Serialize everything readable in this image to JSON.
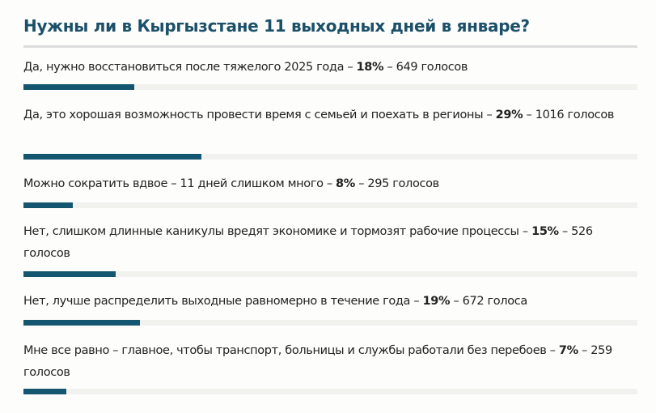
{
  "poll": {
    "title": "Нужны ли в Кыргызстане 11 выходных дней в январе?",
    "accent_color": "#14566f",
    "track_color": "#f1f1ee",
    "options": [
      {
        "label": "Да, нужно восстановиться после тяжелого 2025 года",
        "sep1": " – ",
        "percent": "18%",
        "sep2": " – ",
        "votes": "649 голосов",
        "value": 18
      },
      {
        "label": "Да, это хорошая возможность провести время с семьей и поехать в регионы",
        "sep1": " – ",
        "percent": "29%",
        "sep2": " – ",
        "votes": "1016 голосов",
        "value": 29
      },
      {
        "label": "Можно сократить вдвое – 11 дней слишком много",
        "sep1": " – ",
        "percent": "8%",
        "sep2": " – ",
        "votes": "295 голосов",
        "value": 8
      },
      {
        "label": "Нет, слишком длинные каникулы вредят экономике и тормозят рабочие процессы",
        "sep1": " – ",
        "percent": "15%",
        "sep2": " – ",
        "votes": "526 голосов",
        "value": 15
      },
      {
        "label": "Нет, лучше распределить выходные равномерно в течение года",
        "sep1": " – ",
        "percent": "19%",
        "sep2": " – ",
        "votes": "672 голоса",
        "value": 19
      },
      {
        "label": "Мне все равно – главное, чтобы транспорт, больницы и службы работали без перебоев",
        "sep1": " – ",
        "percent": "7%",
        "sep2": " – ",
        "votes": "259 голосов",
        "value": 7
      }
    ]
  },
  "chart_data": {
    "type": "bar",
    "orientation": "horizontal",
    "title": "Нужны ли в Кыргызстане 11 выходных дней в январе?",
    "categories": [
      "Да, нужно восстановиться после тяжелого 2025 года",
      "Да, это хорошая возможность провести время с семьей и поехать в регионы",
      "Можно сократить вдвое – 11 дней слишком много",
      "Нет, слишком длинные каникулы вредят экономике и тормозят рабочие процессы",
      "Нет, лучше распределить выходные равномерно в течение года",
      "Мне все равно – главное, чтобы транспорт, больницы и службы работали без перебоев"
    ],
    "series": [
      {
        "name": "Процент",
        "values": [
          18,
          29,
          8,
          15,
          19,
          7
        ]
      },
      {
        "name": "Голоса",
        "values": [
          649,
          1016,
          295,
          526,
          672,
          259
        ]
      }
    ],
    "xlabel": "",
    "ylabel": "",
    "xlim": [
      0,
      100
    ],
    "grid": false,
    "legend": "none"
  }
}
